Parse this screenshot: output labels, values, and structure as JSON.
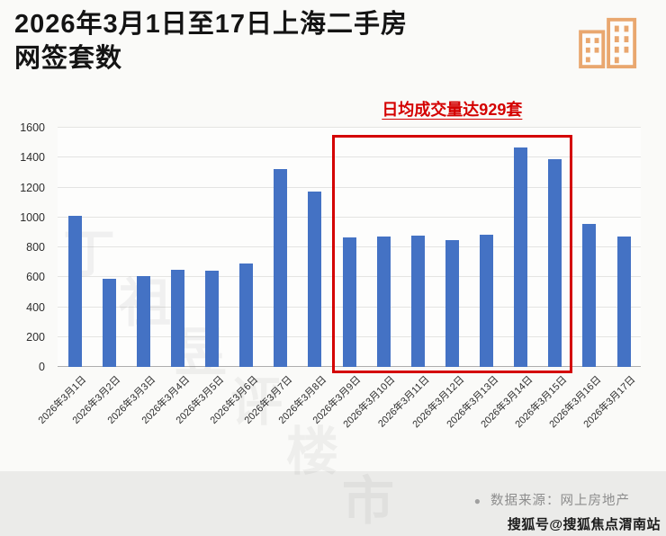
{
  "header": {
    "title_line1": "2026年3月1日至17日上海二手房",
    "title_line2": "网签套数"
  },
  "chart_data": {
    "type": "bar",
    "title": "2026年3月1日至17日上海二手房网签套数",
    "annotation": "日均成交量达929套",
    "categories": [
      "2026年3月1日",
      "2026年3月2日",
      "2026年3月3日",
      "2026年3月4日",
      "2026年3月5日",
      "2026年3月6日",
      "2026年3月7日",
      "2026年3月8日",
      "2026年3月9日",
      "2026年3月10日",
      "2026年3月11日",
      "2026年3月12日",
      "2026年3月13日",
      "2026年3月14日",
      "2026年3月15日",
      "2026年3月16日",
      "2026年3月17日"
    ],
    "values": [
      1010,
      590,
      610,
      650,
      645,
      690,
      1325,
      1175,
      865,
      870,
      880,
      850,
      885,
      1465,
      1390,
      955,
      875
    ],
    "ylim": [
      0,
      1600
    ],
    "ytick_step": 200,
    "grid": true,
    "legend_position": "none",
    "bar_color": "#4472C4",
    "highlight_color": "#d40000",
    "highlight_range": {
      "start_index": 8,
      "end_index": 14
    }
  },
  "footer": {
    "source_bullet": "●",
    "source_text": "数据来源：网上房地产",
    "sohu_text": "搜狐号@搜狐焦点渭南站"
  },
  "watermark": {
    "text": "丁祖昱评楼市"
  },
  "icons": {
    "building_color": "#e9a76f"
  }
}
